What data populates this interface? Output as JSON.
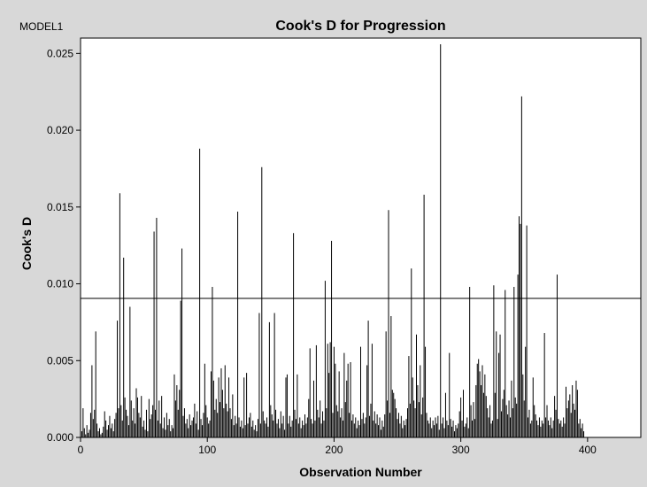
{
  "header": {
    "model_label": "MODEL1",
    "title": "Cook's D for Progression"
  },
  "chart_data": {
    "type": "bar",
    "title": "Cook's D for Progression",
    "xlabel": "Observation Number",
    "ylabel": "Cook's D",
    "xlim": [
      0,
      442
    ],
    "ylim": [
      0,
      0.026
    ],
    "x_ticks": [
      {
        "value": 0,
        "label": "0"
      },
      {
        "value": 100,
        "label": "100"
      },
      {
        "value": 200,
        "label": "200"
      },
      {
        "value": 300,
        "label": "300"
      },
      {
        "value": 400,
        "label": "400"
      }
    ],
    "y_ticks": [
      {
        "value": 0.0,
        "label": "0.000"
      },
      {
        "value": 0.005,
        "label": "0.005"
      },
      {
        "value": 0.01,
        "label": "0.010"
      },
      {
        "value": 0.015,
        "label": "0.015"
      },
      {
        "value": 0.02,
        "label": "0.020"
      },
      {
        "value": 0.025,
        "label": "0.025"
      }
    ],
    "reference_line": 0.00905,
    "series": [
      {
        "values": [
          0.0004,
          0.0019,
          0.0006,
          0.0002,
          0.0008,
          0.0003,
          0.0005,
          0.0016,
          0.0047,
          0.0012,
          0.0018,
          0.0069,
          0.0009,
          0.0004,
          0.0006,
          0.0002,
          0.0003,
          0.0007,
          0.0017,
          0.0011,
          0.0005,
          0.0008,
          0.0014,
          0.0006,
          0.0009,
          0.0004,
          0.0012,
          0.0016,
          0.0076,
          0.0019,
          0.0159,
          0.0021,
          0.0011,
          0.0117,
          0.0026,
          0.0018,
          0.0014,
          0.0008,
          0.0085,
          0.0024,
          0.0011,
          0.0019,
          0.0009,
          0.0032,
          0.0026,
          0.0016,
          0.0013,
          0.0027,
          0.0007,
          0.0011,
          0.0005,
          0.0018,
          0.0004,
          0.0025,
          0.0012,
          0.0015,
          0.0021,
          0.0134,
          0.0018,
          0.0143,
          0.0011,
          0.0024,
          0.0009,
          0.0027,
          0.0006,
          0.0013,
          0.0005,
          0.0016,
          0.0008,
          0.0012,
          0.0004,
          0.0008,
          0.0006,
          0.0041,
          0.0024,
          0.0034,
          0.0018,
          0.0031,
          0.0089,
          0.0123,
          0.0014,
          0.0019,
          0.0009,
          0.0012,
          0.0006,
          0.0015,
          0.0008,
          0.0011,
          0.0013,
          0.0022,
          0.0009,
          0.0017,
          0.0005,
          0.0188,
          0.0012,
          0.0008,
          0.0016,
          0.0048,
          0.0021,
          0.0013,
          0.0009,
          0.0011,
          0.0043,
          0.0098,
          0.0037,
          0.0018,
          0.0025,
          0.0016,
          0.0039,
          0.0023,
          0.0045,
          0.0031,
          0.0019,
          0.0047,
          0.0022,
          0.0017,
          0.0039,
          0.0019,
          0.0012,
          0.0028,
          0.0008,
          0.0014,
          0.0009,
          0.0147,
          0.0013,
          0.0007,
          0.0011,
          0.0006,
          0.0039,
          0.0008,
          0.0042,
          0.0009,
          0.0013,
          0.0016,
          0.0007,
          0.0011,
          0.0005,
          0.0008,
          0.0004,
          0.0012,
          0.0081,
          0.0009,
          0.0176,
          0.0017,
          0.0011,
          0.0009,
          0.0013,
          0.0007,
          0.0075,
          0.0021,
          0.0015,
          0.0011,
          0.0081,
          0.0018,
          0.0009,
          0.0012,
          0.0006,
          0.0017,
          0.0009,
          0.0014,
          0.0005,
          0.0039,
          0.0041,
          0.0009,
          0.0014,
          0.0007,
          0.0011,
          0.0133,
          0.0018,
          0.0012,
          0.0041,
          0.0009,
          0.0013,
          0.0006,
          0.0011,
          0.0008,
          0.0015,
          0.0009,
          0.0013,
          0.0025,
          0.0058,
          0.0012,
          0.0009,
          0.0037,
          0.0011,
          0.006,
          0.0018,
          0.0013,
          0.0024,
          0.0009,
          0.0017,
          0.0011,
          0.0102,
          0.0019,
          0.0061,
          0.0042,
          0.0062,
          0.0128,
          0.0016,
          0.0059,
          0.0048,
          0.0021,
          0.0017,
          0.0043,
          0.0013,
          0.0019,
          0.0011,
          0.0055,
          0.0023,
          0.0037,
          0.0048,
          0.0016,
          0.0049,
          0.0011,
          0.0015,
          0.0009,
          0.0013,
          0.0006,
          0.0011,
          0.0008,
          0.0059,
          0.0012,
          0.0016,
          0.0009,
          0.0013,
          0.0047,
          0.0076,
          0.0014,
          0.0022,
          0.0061,
          0.0011,
          0.0017,
          0.0009,
          0.0015,
          0.0008,
          0.0013,
          0.0005,
          0.0011,
          0.0007,
          0.0015,
          0.0069,
          0.0024,
          0.0148,
          0.0016,
          0.0079,
          0.0031,
          0.0029,
          0.0025,
          0.0019,
          0.0012,
          0.0016,
          0.0009,
          0.0014,
          0.0006,
          0.0011,
          0.0008,
          0.0012,
          0.0019,
          0.0053,
          0.0022,
          0.011,
          0.0039,
          0.0024,
          0.0019,
          0.0067,
          0.0034,
          0.0023,
          0.0047,
          0.0015,
          0.0026,
          0.0158,
          0.0059,
          0.0016,
          0.0011,
          0.0009,
          0.0013,
          0.0006,
          0.0011,
          0.0008,
          0.0013,
          0.0009,
          0.0014,
          0.0005,
          0.0256,
          0.0009,
          0.0013,
          0.0006,
          0.0029,
          0.0011,
          0.0008,
          0.0055,
          0.0012,
          0.0007,
          0.0011,
          0.0004,
          0.0008,
          0.0006,
          0.0009,
          0.0017,
          0.0026,
          0.0011,
          0.0031,
          0.0007,
          0.0009,
          0.0013,
          0.0006,
          0.0098,
          0.0021,
          0.0011,
          0.0023,
          0.0012,
          0.0034,
          0.0048,
          0.0051,
          0.0043,
          0.0034,
          0.0047,
          0.0029,
          0.0041,
          0.0027,
          0.0019,
          0.0013,
          0.0021,
          0.0009,
          0.0011,
          0.0099,
          0.0029,
          0.0069,
          0.0012,
          0.0055,
          0.0067,
          0.0017,
          0.0025,
          0.0031,
          0.0096,
          0.0021,
          0.0015,
          0.0024,
          0.0013,
          0.0037,
          0.0019,
          0.0098,
          0.0026,
          0.0022,
          0.0106,
          0.0144,
          0.0139,
          0.0222,
          0.0041,
          0.0024,
          0.0059,
          0.0138,
          0.0013,
          0.0018,
          0.0009,
          0.0011,
          0.0039,
          0.0021,
          0.0015,
          0.0011,
          0.0008,
          0.0013,
          0.0007,
          0.0011,
          0.0009,
          0.0068,
          0.0013,
          0.0021,
          0.0011,
          0.0008,
          0.0013,
          0.0006,
          0.0011,
          0.0027,
          0.0018,
          0.0106,
          0.0012,
          0.0009,
          0.0011,
          0.0007,
          0.0013,
          0.0009,
          0.0033,
          0.0019,
          0.0024,
          0.0028,
          0.0016,
          0.0034,
          0.0022,
          0.0018,
          0.0037,
          0.0031,
          0.0009,
          0.0012,
          0.0006,
          0.0009,
          0.0004
        ]
      }
    ]
  }
}
